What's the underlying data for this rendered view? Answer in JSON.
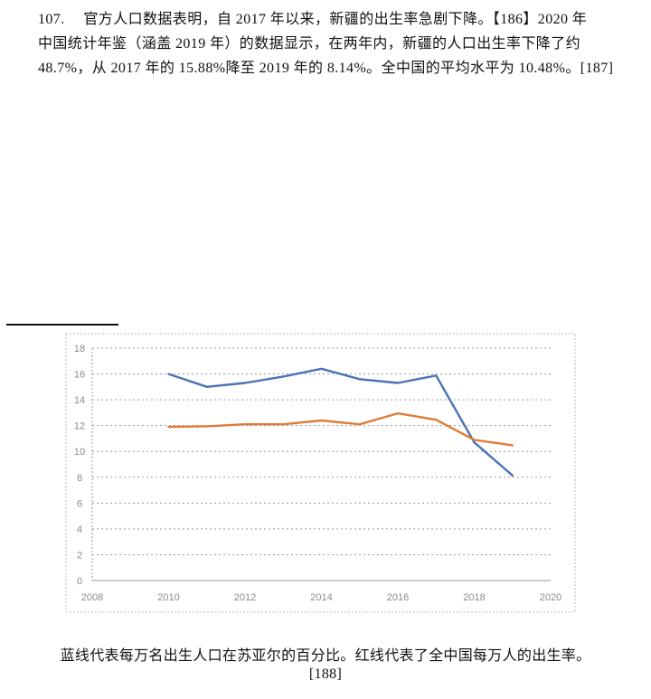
{
  "document": {
    "paragraph_lines": [
      "107.　 官方人口数据表明，自 2017 年以来，新疆的出生率急剧下降。【186】2020 年",
      "中国统计年鉴（涵盖 2019 年）的数据显示，在两年内，新疆的人口出生率下降了约",
      "48.7%，从 2017 年的 15.88%降至 2019 年的 8.14%。全中国的平均水平为 10.48%。[187]"
    ],
    "caption": "蓝线代表每万名出生人口在苏亚尔的百分比。红线代表了全中国每万人的出生率。",
    "caption_ref": "[188]"
  },
  "colors": {
    "xinjiang_line": "#4a72b5",
    "china_line": "#e07b39",
    "grid": "#9a9a9a",
    "frame": "#b9b9b9",
    "tick_text": "#8a8a8a"
  },
  "chart_data": {
    "type": "line",
    "title": "",
    "xlabel": "",
    "ylabel": "",
    "x_ticks": [
      2008,
      2010,
      2012,
      2014,
      2016,
      2018,
      2020
    ],
    "y_ticks": [
      0,
      2,
      4,
      6,
      8,
      10,
      12,
      14,
      16,
      18
    ],
    "xlim": [
      2008,
      2020
    ],
    "ylim": [
      0,
      18
    ],
    "grid": true,
    "legend": "none",
    "series": [
      {
        "color": "#4a72b5",
        "x": [
          2010,
          2011,
          2012,
          2013,
          2014,
          2015,
          2016,
          2017,
          2018,
          2019
        ],
        "values": [
          16.0,
          15.0,
          15.3,
          15.8,
          16.4,
          15.6,
          15.3,
          15.88,
          10.7,
          8.14
        ]
      },
      {
        "color": "#e07b39",
        "x": [
          2010,
          2011,
          2012,
          2013,
          2014,
          2015,
          2016,
          2017,
          2018,
          2019
        ],
        "values": [
          11.9,
          11.95,
          12.1,
          12.1,
          12.4,
          12.1,
          12.95,
          12.45,
          10.9,
          10.48
        ]
      }
    ]
  }
}
